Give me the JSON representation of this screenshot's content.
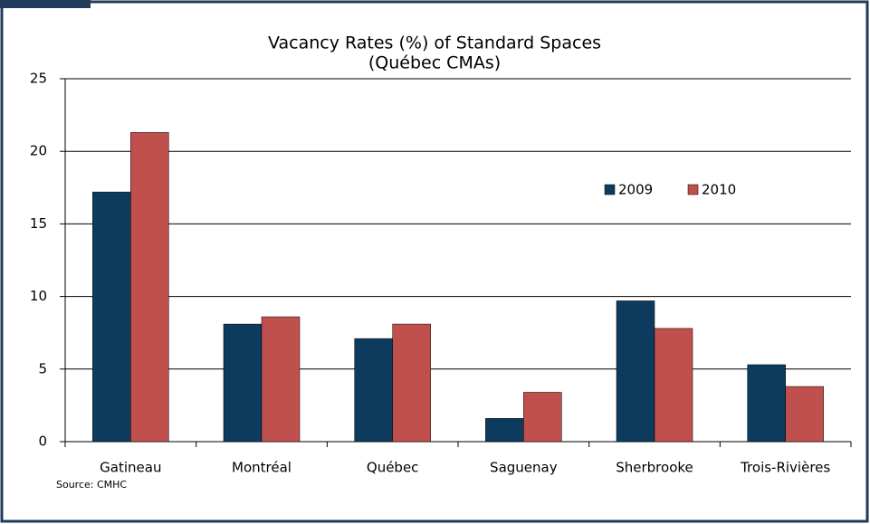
{
  "chart_data": {
    "type": "bar",
    "title": "Vacancy Rates (%) of Standard Spaces",
    "subtitle": "(Québec CMAs)",
    "categories": [
      "Gatineau",
      "Montréal",
      "Québec",
      "Saguenay",
      "Sherbrooke",
      "Trois-Rivières"
    ],
    "series": [
      {
        "name": "2009",
        "color": "#0c3b5e",
        "values": [
          17.2,
          8.1,
          7.1,
          1.6,
          9.7,
          5.3
        ]
      },
      {
        "name": "2010",
        "color": "#c0504d",
        "values": [
          21.3,
          8.6,
          8.1,
          3.4,
          7.8,
          3.8
        ]
      }
    ],
    "ylim": [
      0,
      25
    ],
    "yticks": [
      0,
      5,
      10,
      15,
      20,
      25
    ],
    "grid": true,
    "source": "Source: CMHC"
  }
}
